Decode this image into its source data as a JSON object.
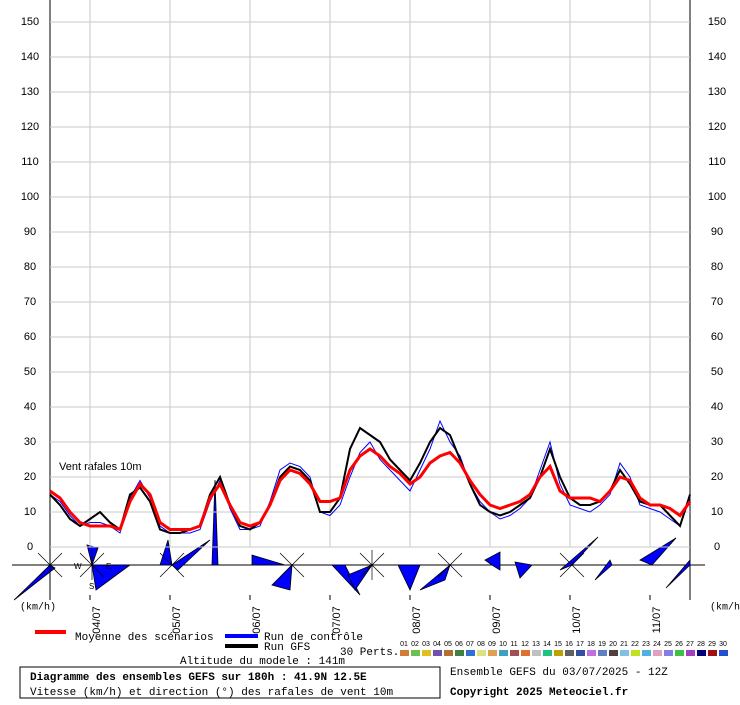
{
  "chart_data": {
    "type": "line",
    "annotation": "Vent rafales 10m",
    "y_unit_left": "(km/h)",
    "y_unit_right": "(km/h)",
    "x": [
      0,
      3,
      6,
      9,
      12,
      15,
      18,
      21,
      24,
      27,
      30,
      33,
      36,
      39,
      42,
      45,
      48,
      51,
      54,
      57,
      60,
      63,
      66,
      69,
      72,
      75,
      78,
      81,
      84,
      87,
      90,
      93,
      96,
      99,
      102,
      105,
      108,
      111,
      114,
      117,
      120,
      123,
      126,
      129,
      132,
      135,
      138,
      141,
      144,
      147,
      150,
      153,
      156,
      159,
      162,
      165,
      168,
      171,
      174,
      177,
      180,
      183,
      186,
      189,
      192
    ],
    "xlim": [
      0,
      192
    ],
    "xticks": [
      {
        "value": 12,
        "label": "04/07"
      },
      {
        "value": 36,
        "label": "05/07"
      },
      {
        "value": 60,
        "label": "06/07"
      },
      {
        "value": 84,
        "label": "07/07"
      },
      {
        "value": 108,
        "label": "08/07"
      },
      {
        "value": 132,
        "label": "09/07"
      },
      {
        "value": 156,
        "label": "10/07"
      },
      {
        "value": 180,
        "label": "11/07"
      }
    ],
    "ylim": [
      0,
      150
    ],
    "yticks": [
      0,
      10,
      20,
      30,
      40,
      50,
      60,
      70,
      80,
      90,
      100,
      110,
      120,
      130,
      140,
      150
    ],
    "grid": true,
    "series": [
      {
        "name": "Moyenne des scénarios",
        "color": "#ff0000",
        "width": 3,
        "values": [
          16,
          14,
          10,
          7,
          6,
          6,
          6,
          5,
          13,
          18,
          15,
          7,
          5,
          5,
          5,
          6,
          14,
          18,
          12,
          7,
          6,
          7,
          12,
          19,
          22,
          21,
          18,
          13,
          13,
          14,
          22,
          26,
          28,
          26,
          23,
          21,
          18,
          20,
          24,
          26,
          27,
          24,
          19,
          15,
          12,
          11,
          12,
          13,
          15,
          20,
          23,
          16,
          14,
          14,
          14,
          13,
          16,
          20,
          19,
          14,
          12,
          12,
          11,
          9,
          13
        ]
      },
      {
        "name": "Run de contrôle",
        "color": "#0000ff",
        "width": 1,
        "values": [
          15,
          13,
          9,
          6,
          7,
          7,
          6,
          4,
          14,
          19,
          14,
          6,
          4,
          4,
          4,
          5,
          13,
          19,
          11,
          5,
          5,
          6,
          13,
          22,
          24,
          23,
          20,
          10,
          9,
          12,
          20,
          27,
          30,
          25,
          22,
          19,
          16,
          22,
          28,
          36,
          30,
          26,
          18,
          13,
          10,
          8,
          9,
          11,
          14,
          22,
          30,
          18,
          12,
          11,
          10,
          12,
          15,
          24,
          20,
          12,
          11,
          10,
          8,
          6,
          14
        ]
      },
      {
        "name": "Run GFS",
        "color": "#000000",
        "width": 2,
        "values": [
          15,
          12,
          8,
          6,
          8,
          10,
          7,
          5,
          15,
          17,
          13,
          5,
          4,
          4,
          5,
          6,
          15,
          20,
          12,
          6,
          5,
          7,
          12,
          20,
          23,
          22,
          19,
          10,
          10,
          14,
          28,
          34,
          32,
          30,
          25,
          22,
          19,
          24,
          30,
          34,
          32,
          25,
          18,
          12,
          10,
          9,
          10,
          12,
          14,
          20,
          28,
          20,
          14,
          12,
          12,
          13,
          16,
          22,
          18,
          13,
          12,
          12,
          9,
          6,
          15
        ]
      }
    ],
    "perturbations_label": "30 Perts.",
    "perturbations": [
      {
        "name": "01",
        "color": "#d07b3a"
      },
      {
        "name": "02",
        "color": "#6fbf4f"
      },
      {
        "name": "03",
        "color": "#e0c020"
      },
      {
        "name": "04",
        "color": "#7050b0"
      },
      {
        "name": "05",
        "color": "#b07030"
      },
      {
        "name": "06",
        "color": "#408040"
      },
      {
        "name": "07",
        "color": "#3070d0"
      },
      {
        "name": "08",
        "color": "#e0e080"
      },
      {
        "name": "09",
        "color": "#e0a050"
      },
      {
        "name": "10",
        "color": "#40a0c0"
      },
      {
        "name": "11",
        "color": "#a05050"
      },
      {
        "name": "12",
        "color": "#e07030"
      },
      {
        "name": "13",
        "color": "#c0c0c0"
      },
      {
        "name": "14",
        "color": "#20c080"
      },
      {
        "name": "15",
        "color": "#c0a000"
      },
      {
        "name": "16",
        "color": "#606060"
      },
      {
        "name": "17",
        "color": "#3050a0"
      },
      {
        "name": "18",
        "color": "#c070e0"
      },
      {
        "name": "19",
        "color": "#6080c0"
      },
      {
        "name": "20",
        "color": "#504040"
      },
      {
        "name": "21",
        "color": "#80c0e0"
      },
      {
        "name": "22",
        "color": "#c0e020"
      },
      {
        "name": "23",
        "color": "#50b0e0"
      },
      {
        "name": "24",
        "color": "#e0a0c0"
      },
      {
        "name": "25",
        "color": "#8080e0"
      },
      {
        "name": "26",
        "color": "#40c040"
      },
      {
        "name": "27",
        "color": "#a040c0"
      },
      {
        "name": "28",
        "color": "#000080"
      },
      {
        "name": "29",
        "color": "#a01010"
      },
      {
        "name": "30",
        "color": "#2050d0"
      }
    ],
    "compass": [
      "W",
      "E",
      "S"
    ],
    "altitude": "Altitude du modele : 141m",
    "title": "Diagramme des ensembles GEFS sur 180h : 41.9N 12.5E",
    "subtitle": "Vitesse (km/h) et direction (°) des rafales de vent 10m",
    "run_info": "Ensemble GEFS du 03/07/2025 - 12Z",
    "copyright": "Copyright 2025 Meteociel.fr"
  }
}
